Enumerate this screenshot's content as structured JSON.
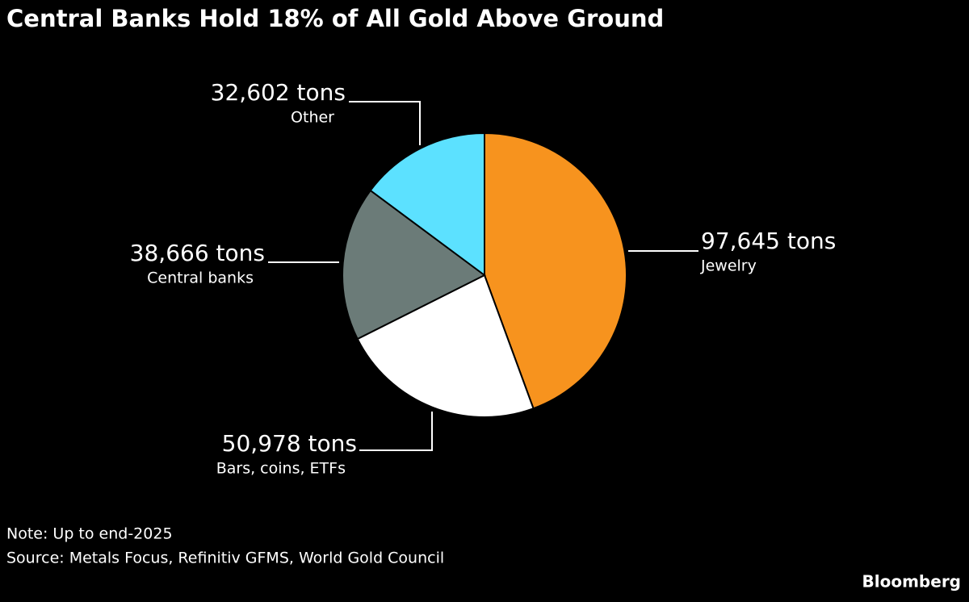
{
  "chart_data": {
    "type": "pie",
    "title": "Central Banks Hold 18% of All Gold Above Ground",
    "categories": [
      "Jewelry",
      "Bars, coins, ETFs",
      "Central banks",
      "Other"
    ],
    "values": [
      97645,
      50978,
      38666,
      32602
    ],
    "value_labels": [
      "97,645 tons",
      "50,978 tons",
      "38,666 tons",
      "32,602 tons"
    ],
    "colors": [
      "#f7931e",
      "#ffffff",
      "#6b7b78",
      "#5ce1ff"
    ],
    "note": "Note: Up to end-2025",
    "source": "Source: Metals Focus, Refinitiv GFMS, World Gold Council",
    "credit": "Bloomberg"
  }
}
